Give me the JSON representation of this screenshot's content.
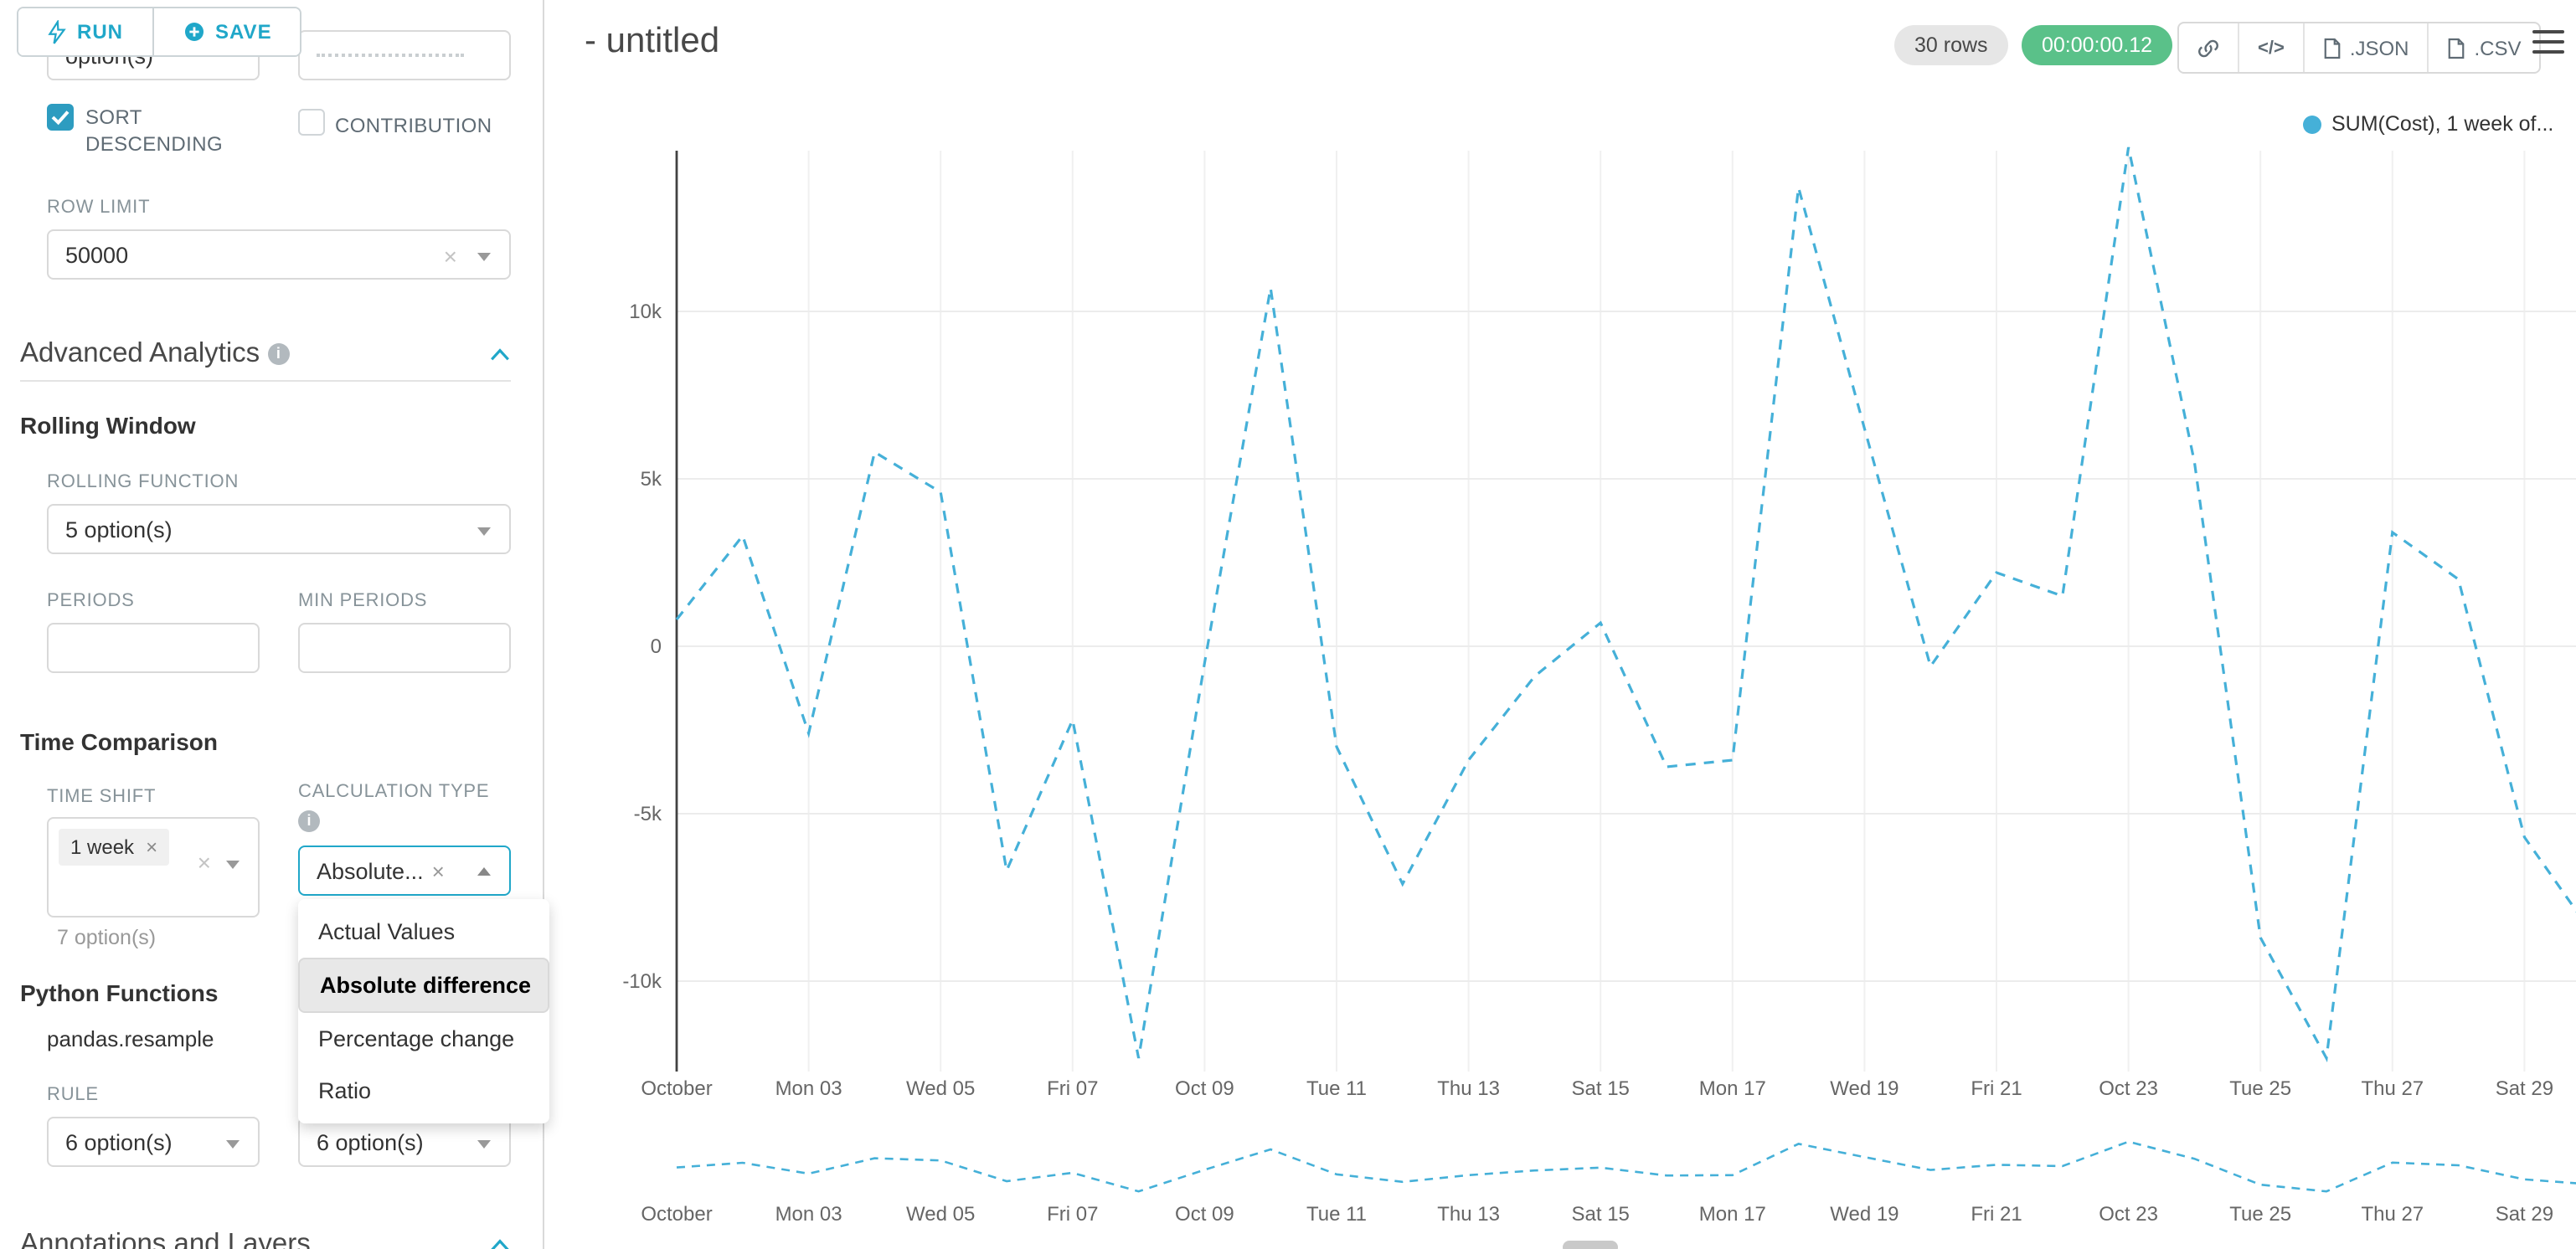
{
  "colors": {
    "accent": "#20a7c9",
    "success_badge": "#5ac189",
    "chart_line": "#45b0d8",
    "selected_option_bg": "#e8e8e8"
  },
  "toolbar": {
    "run_label": "RUN",
    "save_label": "SAVE"
  },
  "header": {
    "title": "- untitled",
    "rows_badge": "30 rows",
    "timer_badge": "00:00:00.12",
    "code_label": "</>",
    "json_label": ".JSON",
    "csv_label": ".CSV"
  },
  "panel": {
    "truncated_select_text": "option(s)",
    "sort_descending_label": "SORT DESCENDING",
    "contribution_label": "CONTRIBUTION",
    "row_limit_label": "ROW LIMIT",
    "row_limit_value": "50000",
    "advanced_analytics_title": "Advanced Analytics",
    "rolling_window_title": "Rolling Window",
    "rolling_function_label": "ROLLING FUNCTION",
    "rolling_function_value": "5 option(s)",
    "periods_label": "PERIODS",
    "min_periods_label": "MIN PERIODS",
    "time_comparison_title": "Time Comparison",
    "time_shift_label": "TIME SHIFT",
    "time_shift_tag": "1 week",
    "time_shift_placeholder": "7 option(s)",
    "calculation_type_label": "CALCULATION TYPE",
    "calculation_type_value": "Absolute...",
    "dropdown_options": [
      "Actual Values",
      "Absolute difference",
      "Percentage change",
      "Ratio"
    ],
    "dropdown_selected": "Absolute difference",
    "python_functions_title": "Python Functions",
    "python_function_name": "pandas.resample",
    "rule_label": "RULE",
    "rule_value_1": "6 option(s)",
    "rule_value_2": "6 option(s)",
    "annotations_title": "Annotations and Layers"
  },
  "chart_data": {
    "type": "line",
    "title": "- untitled",
    "legend": [
      {
        "label": "SUM(Cost), 1 week of...",
        "color": "#45b0d8"
      }
    ],
    "legend_position": "top-right",
    "grid": true,
    "x_days": [
      1,
      2,
      3,
      4,
      5,
      6,
      7,
      8,
      9,
      10,
      11,
      12,
      13,
      14,
      15,
      16,
      17,
      18,
      19,
      20,
      21,
      22,
      23,
      24,
      25,
      26,
      27,
      28,
      29,
      30
    ],
    "x_tick_labels": [
      "October",
      "Mon 03",
      "Wed 05",
      "Fri 07",
      "Oct 09",
      "Tue 11",
      "Thu 13",
      "Sat 15",
      "Mon 17",
      "Wed 19",
      "Fri 21",
      "Oct 23",
      "Tue 25",
      "Thu 27",
      "Sat 29"
    ],
    "y_ticks": [
      {
        "label": "10k",
        "value": 10000
      },
      {
        "label": "5k",
        "value": 5000
      },
      {
        "label": "0",
        "value": 0
      },
      {
        "label": "-5k",
        "value": -5000
      },
      {
        "label": "-10k",
        "value": -10000
      }
    ],
    "ylim": [
      -12700,
      14800
    ],
    "series": [
      {
        "name": "SUM(Cost), 1 week of...",
        "color": "#45b0d8",
        "dashed": true,
        "values": [
          800,
          3300,
          -2600,
          5800,
          4600,
          -6700,
          -2200,
          -12300,
          -500,
          10700,
          -3000,
          -7100,
          -3400,
          -900,
          700,
          -3600,
          -3400,
          13700,
          6500,
          -600,
          2200,
          1500,
          14900,
          5500,
          -8700,
          -12300,
          3400,
          2000,
          -5700,
          -8500
        ]
      }
    ]
  }
}
